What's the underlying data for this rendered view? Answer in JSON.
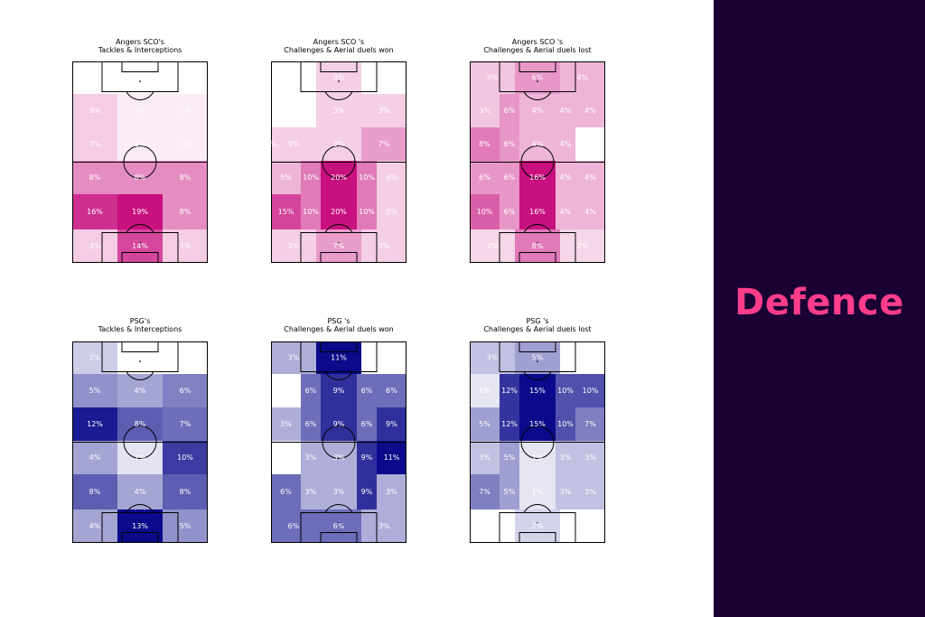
{
  "side_panel": {
    "label": "Defence",
    "label_color": "#ff3d8b",
    "background": "#1a0033"
  },
  "chart_data": [
    {
      "type": "heatmap",
      "team": "angers",
      "title_line1": "Angers SCO's",
      "title_line2": "Tackles & Interceptions",
      "color": "#c8107f",
      "zones": [
        {
          "row": 0,
          "col": 0,
          "value": 0
        },
        {
          "row": 0,
          "col": 1,
          "value": 0
        },
        {
          "row": 0,
          "col": 2,
          "value": 0
        },
        {
          "row": 1,
          "col": 0,
          "value": 3
        },
        {
          "row": 1,
          "col": 1,
          "value": 1
        },
        {
          "row": 1,
          "col": 2,
          "value": 1
        },
        {
          "row": 2,
          "col": 0,
          "value": 3
        },
        {
          "row": 2,
          "col": 1,
          "value": 1
        },
        {
          "row": 2,
          "col": 2,
          "value": 1
        },
        {
          "row": 3,
          "col": 0,
          "value": 8
        },
        {
          "row": 3,
          "col": 1,
          "value": 8
        },
        {
          "row": 3,
          "col": 2,
          "value": 8
        },
        {
          "row": 4,
          "col": 0,
          "value": 16
        },
        {
          "row": 4,
          "col": 1,
          "value": 19
        },
        {
          "row": 4,
          "col": 2,
          "value": 8
        },
        {
          "row": 5,
          "col": 0,
          "value": 3
        },
        {
          "row": 5,
          "col": 1,
          "value": 14
        },
        {
          "row": 5,
          "col": 2,
          "value": 3
        }
      ]
    },
    {
      "type": "heatmap",
      "team": "angers",
      "title_line1": "Angers SCO 's",
      "title_line2": "Challenges & Aerial duels won",
      "color": "#c8107f",
      "zones": [
        {
          "row": 0,
          "col": 0,
          "value": 0
        },
        {
          "row": 0,
          "col": 1,
          "value": 3
        },
        {
          "row": 0,
          "col": 2,
          "value": 0
        },
        {
          "row": 1,
          "col": 0,
          "value": 0
        },
        {
          "row": 1,
          "col": 1,
          "value": 3
        },
        {
          "row": 1,
          "col": 2,
          "value": 3
        },
        {
          "row": 2,
          "col": 0,
          "value": 3
        },
        {
          "row": 2,
          "col": 1,
          "value": 3
        },
        {
          "row": 2,
          "col": 2,
          "value": 7
        },
        {
          "row": 2,
          "col": 3,
          "value": 3
        },
        {
          "row": 3,
          "col": 0,
          "value": 5
        },
        {
          "row": 3,
          "col": 1,
          "value": 10
        },
        {
          "row": 3,
          "col": 2,
          "value": 20
        },
        {
          "row": 3,
          "col": 3,
          "value": 10
        },
        {
          "row": 3,
          "col": 4,
          "value": 3
        },
        {
          "row": 4,
          "col": 0,
          "value": 15
        },
        {
          "row": 4,
          "col": 1,
          "value": 10
        },
        {
          "row": 4,
          "col": 2,
          "value": 20
        },
        {
          "row": 4,
          "col": 3,
          "value": 10
        },
        {
          "row": 4,
          "col": 4,
          "value": 3
        },
        {
          "row": 5,
          "col": 0,
          "value": 3
        },
        {
          "row": 5,
          "col": 1,
          "value": 7
        },
        {
          "row": 5,
          "col": 2,
          "value": 3
        }
      ]
    },
    {
      "type": "heatmap",
      "team": "angers",
      "title_line1": "Angers SCO 's",
      "title_line2": "Challenges & Aerial duels lost",
      "color": "#c8107f",
      "zones": [
        {
          "row": 0,
          "col": 0,
          "value": 3
        },
        {
          "row": 0,
          "col": 1,
          "value": 6
        },
        {
          "row": 0,
          "col": 2,
          "value": 4
        },
        {
          "row": 1,
          "col": 0,
          "value": 3
        },
        {
          "row": 1,
          "col": 1,
          "value": 6
        },
        {
          "row": 1,
          "col": 2,
          "value": 4
        },
        {
          "row": 1,
          "col": 3,
          "value": 4
        },
        {
          "row": 1,
          "col": 4,
          "value": 4
        },
        {
          "row": 2,
          "col": 0,
          "value": 8
        },
        {
          "row": 2,
          "col": 1,
          "value": 6
        },
        {
          "row": 2,
          "col": 2,
          "value": 4
        },
        {
          "row": 2,
          "col": 3,
          "value": 4
        },
        {
          "row": 2,
          "col": 4,
          "value": 0
        },
        {
          "row": 3,
          "col": 0,
          "value": 6
        },
        {
          "row": 3,
          "col": 1,
          "value": 6
        },
        {
          "row": 3,
          "col": 2,
          "value": 16
        },
        {
          "row": 3,
          "col": 3,
          "value": 4
        },
        {
          "row": 3,
          "col": 4,
          "value": 4
        },
        {
          "row": 4,
          "col": 0,
          "value": 10
        },
        {
          "row": 4,
          "col": 1,
          "value": 6
        },
        {
          "row": 4,
          "col": 2,
          "value": 16
        },
        {
          "row": 4,
          "col": 3,
          "value": 4
        },
        {
          "row": 4,
          "col": 4,
          "value": 4
        },
        {
          "row": 5,
          "col": 0,
          "value": 2
        },
        {
          "row": 5,
          "col": 1,
          "value": 8
        },
        {
          "row": 5,
          "col": 2,
          "value": 2
        }
      ]
    },
    {
      "type": "heatmap",
      "team": "psg",
      "title_line1": "PSG's",
      "title_line2": "Tackles & Interceptions",
      "color": "#0a0a8a",
      "zones": [
        {
          "row": 0,
          "col": 0,
          "value": 2
        },
        {
          "row": 0,
          "col": 1,
          "value": 0
        },
        {
          "row": 0,
          "col": 2,
          "value": 0
        },
        {
          "row": 1,
          "col": 0,
          "value": 5
        },
        {
          "row": 1,
          "col": 1,
          "value": 4
        },
        {
          "row": 1,
          "col": 2,
          "value": 6
        },
        {
          "row": 2,
          "col": 0,
          "value": 12
        },
        {
          "row": 2,
          "col": 1,
          "value": 8
        },
        {
          "row": 2,
          "col": 2,
          "value": 7
        },
        {
          "row": 3,
          "col": 0,
          "value": 4
        },
        {
          "row": 3,
          "col": 1,
          "value": 1
        },
        {
          "row": 3,
          "col": 2,
          "value": 10
        },
        {
          "row": 4,
          "col": 0,
          "value": 8
        },
        {
          "row": 4,
          "col": 1,
          "value": 4
        },
        {
          "row": 4,
          "col": 2,
          "value": 8
        },
        {
          "row": 5,
          "col": 0,
          "value": 4
        },
        {
          "row": 5,
          "col": 1,
          "value": 13
        },
        {
          "row": 5,
          "col": 2,
          "value": 5
        }
      ]
    },
    {
      "type": "heatmap",
      "team": "psg",
      "title_line1": "PSG 's",
      "title_line2": "Challenges & Aerial duels won",
      "color": "#0a0a8a",
      "zones": [
        {
          "row": 0,
          "col": 0,
          "value": 3
        },
        {
          "row": 0,
          "col": 1,
          "value": 11
        },
        {
          "row": 0,
          "col": 2,
          "value": 0
        },
        {
          "row": 1,
          "col": 0,
          "value": 0
        },
        {
          "row": 1,
          "col": 1,
          "value": 6
        },
        {
          "row": 1,
          "col": 2,
          "value": 9
        },
        {
          "row": 1,
          "col": 3,
          "value": 6
        },
        {
          "row": 1,
          "col": 4,
          "value": 6
        },
        {
          "row": 2,
          "col": 0,
          "value": 3
        },
        {
          "row": 2,
          "col": 1,
          "value": 6
        },
        {
          "row": 2,
          "col": 2,
          "value": 9
        },
        {
          "row": 2,
          "col": 3,
          "value": 6
        },
        {
          "row": 2,
          "col": 4,
          "value": 9
        },
        {
          "row": 3,
          "col": 0,
          "value": 0
        },
        {
          "row": 3,
          "col": 1,
          "value": 3
        },
        {
          "row": 3,
          "col": 2,
          "value": 3
        },
        {
          "row": 3,
          "col": 3,
          "value": 9
        },
        {
          "row": 3,
          "col": 4,
          "value": 11
        },
        {
          "row": 4,
          "col": 0,
          "value": 6
        },
        {
          "row": 4,
          "col": 1,
          "value": 3
        },
        {
          "row": 4,
          "col": 2,
          "value": 3
        },
        {
          "row": 4,
          "col": 3,
          "value": 9
        },
        {
          "row": 4,
          "col": 4,
          "value": 3
        },
        {
          "row": 5,
          "col": 0,
          "value": 6
        },
        {
          "row": 5,
          "col": 1,
          "value": 6
        },
        {
          "row": 5,
          "col": 2,
          "value": 3
        }
      ]
    },
    {
      "type": "heatmap",
      "team": "psg",
      "title_line1": "PSG 's",
      "title_line2": "Challenges & Aerial duels lost",
      "color": "#0a0a8a",
      "zones": [
        {
          "row": 0,
          "col": 0,
          "value": 3
        },
        {
          "row": 0,
          "col": 1,
          "value": 5
        },
        {
          "row": 0,
          "col": 2,
          "value": 0
        },
        {
          "row": 1,
          "col": 0,
          "value": 1
        },
        {
          "row": 1,
          "col": 1,
          "value": 12
        },
        {
          "row": 1,
          "col": 2,
          "value": 15
        },
        {
          "row": 1,
          "col": 3,
          "value": 10
        },
        {
          "row": 1,
          "col": 4,
          "value": 10
        },
        {
          "row": 2,
          "col": 0,
          "value": 5
        },
        {
          "row": 2,
          "col": 1,
          "value": 12
        },
        {
          "row": 2,
          "col": 2,
          "value": 15
        },
        {
          "row": 2,
          "col": 3,
          "value": 10
        },
        {
          "row": 2,
          "col": 4,
          "value": 7
        },
        {
          "row": 3,
          "col": 0,
          "value": 3
        },
        {
          "row": 3,
          "col": 1,
          "value": 5
        },
        {
          "row": 3,
          "col": 2,
          "value": 1
        },
        {
          "row": 3,
          "col": 3,
          "value": 3
        },
        {
          "row": 3,
          "col": 4,
          "value": 3
        },
        {
          "row": 4,
          "col": 0,
          "value": 7
        },
        {
          "row": 4,
          "col": 1,
          "value": 5
        },
        {
          "row": 4,
          "col": 2,
          "value": 1
        },
        {
          "row": 4,
          "col": 3,
          "value": 3
        },
        {
          "row": 4,
          "col": 4,
          "value": 3
        },
        {
          "row": 5,
          "col": 0,
          "value": 0
        },
        {
          "row": 5,
          "col": 1,
          "value": 2
        },
        {
          "row": 5,
          "col": 2,
          "value": 0
        }
      ]
    }
  ]
}
